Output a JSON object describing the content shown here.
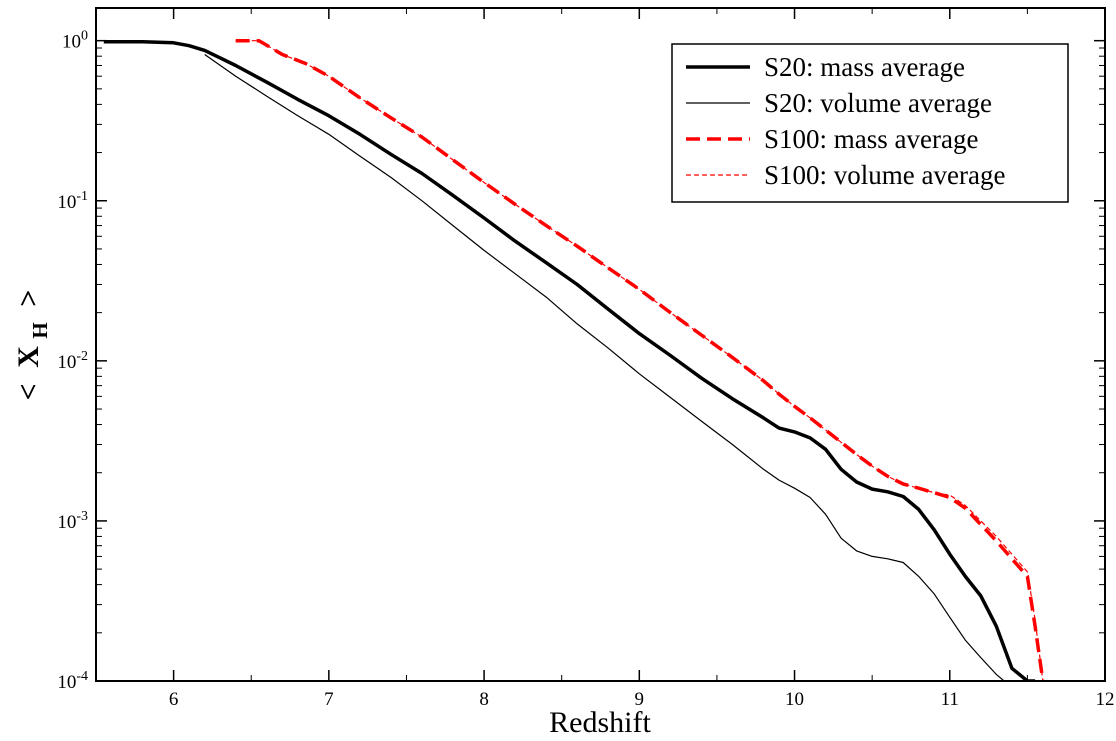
{
  "chart_data": {
    "type": "line",
    "title": "",
    "xlabel": "Redshift",
    "ylabel": "< X_H >",
    "ylabel_parts": {
      "open": "<",
      "symbol": "X",
      "subscript": "H",
      "close": ">"
    },
    "xscale": "linear",
    "yscale": "log",
    "xlim": [
      5.5,
      12
    ],
    "ylim": [
      0.0001,
      1.6
    ],
    "xticks": [
      6,
      7,
      8,
      9,
      10,
      11,
      12
    ],
    "xtick_labels": [
      "6",
      "7",
      "8",
      "9",
      "10",
      "11",
      "12"
    ],
    "yticks": [
      {
        "value": 1,
        "base": "10",
        "exp": "0"
      },
      {
        "value": 0.1,
        "base": "10",
        "exp": "-1"
      },
      {
        "value": 0.01,
        "base": "10",
        "exp": "-2"
      },
      {
        "value": 0.001,
        "base": "10",
        "exp": "-3"
      },
      {
        "value": 0.0001,
        "base": "10",
        "exp": "-4"
      }
    ],
    "grid": false,
    "legend_position": "top-right",
    "series": [
      {
        "name": "S20: mass average",
        "color": "#000000",
        "style": "solid",
        "weight": "thick",
        "x": [
          5.55,
          5.8,
          6.0,
          6.1,
          6.2,
          6.3,
          6.4,
          6.6,
          6.8,
          7.0,
          7.2,
          7.4,
          7.6,
          7.8,
          8.0,
          8.2,
          8.4,
          8.6,
          8.8,
          9.0,
          9.2,
          9.4,
          9.6,
          9.8,
          9.9,
          10.0,
          10.1,
          10.2,
          10.3,
          10.4,
          10.5,
          10.6,
          10.7,
          10.8,
          10.9,
          11.0,
          11.1,
          11.2,
          11.3,
          11.4,
          11.5,
          11.55
        ],
        "y": [
          0.985,
          0.985,
          0.97,
          0.93,
          0.87,
          0.78,
          0.7,
          0.55,
          0.43,
          0.34,
          0.26,
          0.195,
          0.148,
          0.108,
          0.078,
          0.056,
          0.041,
          0.03,
          0.021,
          0.0148,
          0.0108,
          0.0078,
          0.0058,
          0.0044,
          0.0038,
          0.0036,
          0.0033,
          0.0028,
          0.0021,
          0.00175,
          0.00158,
          0.00152,
          0.00142,
          0.00118,
          0.00088,
          0.00062,
          0.00045,
          0.00034,
          0.00022,
          0.00012,
          0.0001,
          0.0001
        ]
      },
      {
        "name": "S20: volume average",
        "color": "#000000",
        "style": "solid",
        "weight": "thin",
        "x": [
          6.2,
          6.4,
          6.6,
          6.8,
          7.0,
          7.2,
          7.4,
          7.6,
          7.8,
          8.0,
          8.2,
          8.4,
          8.6,
          8.8,
          9.0,
          9.2,
          9.4,
          9.6,
          9.8,
          9.9,
          10.0,
          10.1,
          10.2,
          10.3,
          10.4,
          10.5,
          10.6,
          10.7,
          10.8,
          10.9,
          11.0,
          11.1,
          11.2,
          11.3,
          11.35
        ],
        "y": [
          0.82,
          0.6,
          0.45,
          0.34,
          0.26,
          0.19,
          0.14,
          0.1,
          0.07,
          0.049,
          0.035,
          0.025,
          0.017,
          0.012,
          0.0083,
          0.0059,
          0.0042,
          0.003,
          0.0021,
          0.0018,
          0.0016,
          0.0014,
          0.0011,
          0.00078,
          0.00065,
          0.0006,
          0.00058,
          0.00055,
          0.00045,
          0.00035,
          0.00025,
          0.00018,
          0.00014,
          0.00011,
          0.0001
        ]
      },
      {
        "name": "S100: mass average",
        "color": "#ff0000",
        "style": "dashed",
        "weight": "thick",
        "x": [
          6.4,
          6.55,
          6.7,
          6.85,
          7.0,
          7.2,
          7.4,
          7.6,
          7.8,
          8.0,
          8.2,
          8.4,
          8.6,
          8.8,
          9.0,
          9.2,
          9.4,
          9.6,
          9.8,
          9.9,
          10.0,
          10.1,
          10.2,
          10.3,
          10.4,
          10.5,
          10.6,
          10.7,
          10.8,
          10.9,
          11.0,
          11.1,
          11.2,
          11.3,
          11.4,
          11.5,
          11.55,
          11.6
        ],
        "y": [
          1.0,
          1.0,
          0.82,
          0.72,
          0.6,
          0.44,
          0.33,
          0.25,
          0.18,
          0.13,
          0.095,
          0.07,
          0.052,
          0.038,
          0.028,
          0.02,
          0.0145,
          0.0105,
          0.0075,
          0.0062,
          0.0052,
          0.0044,
          0.0037,
          0.0031,
          0.0026,
          0.0022,
          0.0019,
          0.0017,
          0.0016,
          0.0015,
          0.0014,
          0.0012,
          0.00095,
          0.00075,
          0.00058,
          0.00045,
          0.00022,
          0.0001
        ]
      },
      {
        "name": "S100: volume average",
        "color": "#ff0000",
        "style": "dashed",
        "weight": "thin",
        "x": [
          6.4,
          6.55,
          6.7,
          6.85,
          7.0,
          7.2,
          7.4,
          7.6,
          7.8,
          8.0,
          8.2,
          8.4,
          8.6,
          8.8,
          9.0,
          9.2,
          9.4,
          9.6,
          9.8,
          9.9,
          10.0,
          10.1,
          10.2,
          10.3,
          10.4,
          10.5,
          10.6,
          10.7,
          10.8,
          10.9,
          11.0,
          11.1,
          11.2,
          11.3,
          11.4,
          11.5,
          11.55,
          11.6
        ],
        "y": [
          1.0,
          1.0,
          0.82,
          0.72,
          0.6,
          0.44,
          0.33,
          0.25,
          0.18,
          0.13,
          0.095,
          0.07,
          0.052,
          0.038,
          0.028,
          0.02,
          0.0145,
          0.0105,
          0.0075,
          0.0062,
          0.0052,
          0.0044,
          0.0037,
          0.0031,
          0.0026,
          0.0022,
          0.0019,
          0.0017,
          0.0016,
          0.0015,
          0.00145,
          0.00125,
          0.001,
          0.0008,
          0.00062,
          0.00048,
          0.00024,
          0.0001
        ]
      }
    ]
  }
}
